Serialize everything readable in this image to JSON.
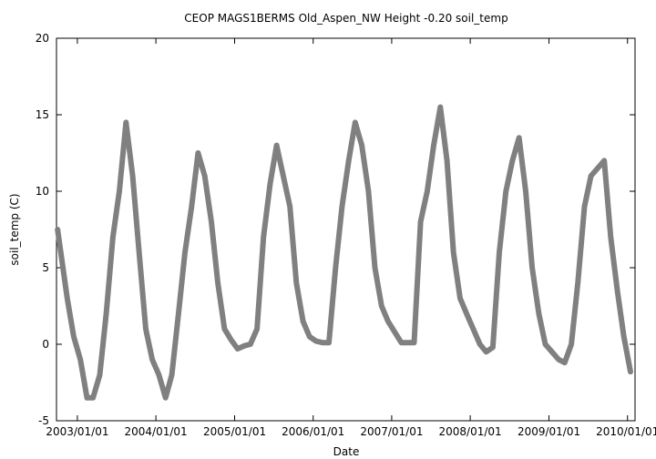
{
  "chart_data": {
    "type": "line",
    "title": "CEOP MAGS1BERMS Old_Aspen_NW Height -0.20 soil_temp",
    "x_label": "Date",
    "y_label": "soil_temp (C)",
    "xlim": [
      "2002-09-26",
      "2010-02-05"
    ],
    "xticks": [
      {
        "value": "2003-01-01",
        "label": "2003/01/01"
      },
      {
        "value": "2004-01-01",
        "label": "2004/01/01"
      },
      {
        "value": "2005-01-01",
        "label": "2005/01/01"
      },
      {
        "value": "2006-01-01",
        "label": "2006/01/01"
      },
      {
        "value": "2007-01-01",
        "label": "2007/01/01"
      },
      {
        "value": "2008-01-01",
        "label": "2008/01/01"
      },
      {
        "value": "2009-01-01",
        "label": "2009/01/01"
      },
      {
        "value": "2010-01-01",
        "label": "2010/01/01"
      }
    ],
    "ylim": [
      -5,
      20
    ],
    "yticks": [
      -5,
      0,
      5,
      10,
      15,
      20
    ],
    "x": [
      "2002-10-01",
      "2002-11-15",
      "2002-12-15",
      "2003-01-15",
      "2003-02-15",
      "2003-03-15",
      "2003-04-15",
      "2003-05-15",
      "2003-06-15",
      "2003-07-15",
      "2003-08-15",
      "2003-09-15",
      "2003-10-15",
      "2003-11-15",
      "2003-12-15",
      "2004-01-15",
      "2004-02-15",
      "2004-03-15",
      "2004-04-15",
      "2004-05-15",
      "2004-06-15",
      "2004-07-15",
      "2004-08-15",
      "2004-09-15",
      "2004-10-15",
      "2004-11-15",
      "2004-12-15",
      "2005-01-15",
      "2005-02-15",
      "2005-03-15",
      "2005-04-15",
      "2005-05-15",
      "2005-06-15",
      "2005-07-15",
      "2005-08-15",
      "2005-09-15",
      "2005-10-15",
      "2005-11-15",
      "2005-12-15",
      "2006-01-15",
      "2006-02-15",
      "2006-03-15",
      "2006-04-15",
      "2006-05-15",
      "2006-06-15",
      "2006-07-15",
      "2006-08-15",
      "2006-09-15",
      "2006-10-15",
      "2006-11-15",
      "2006-12-15",
      "2007-01-15",
      "2007-02-15",
      "2007-03-15",
      "2007-04-15",
      "2007-05-15",
      "2007-06-15",
      "2007-07-15",
      "2007-08-15",
      "2007-09-15",
      "2007-10-15",
      "2007-11-15",
      "2007-12-15",
      "2008-01-15",
      "2008-02-15",
      "2008-03-15",
      "2008-04-15",
      "2008-05-15",
      "2008-06-15",
      "2008-07-15",
      "2008-08-15",
      "2008-09-15",
      "2008-10-15",
      "2008-11-15",
      "2008-12-15",
      "2009-01-15",
      "2009-02-15",
      "2009-03-15",
      "2009-04-15",
      "2009-05-15",
      "2009-06-15",
      "2009-07-15",
      "2009-08-15",
      "2009-09-15",
      "2009-10-15",
      "2009-11-15",
      "2009-12-15",
      "2010-01-15"
    ],
    "series": [
      {
        "name": "soil_temp",
        "color": "#808080",
        "values": [
          7.5,
          3,
          0.5,
          -1,
          -3.5,
          -3.5,
          -2,
          2,
          7,
          10,
          14.5,
          11,
          6,
          1,
          -1,
          -2,
          -3.5,
          -2,
          2,
          6,
          9,
          12.5,
          11,
          8,
          4,
          1,
          0.3,
          -0.3,
          -0.1,
          0,
          1,
          7,
          10.5,
          13,
          11,
          9,
          4,
          1.5,
          0.5,
          0.2,
          0.1,
          0.1,
          5,
          9,
          12,
          14.5,
          13,
          10,
          5,
          2.5,
          1.5,
          0.8,
          0.1,
          0.1,
          0.1,
          8,
          10,
          13,
          15.5,
          12,
          6,
          3,
          2,
          1,
          0,
          -0.5,
          -0.2,
          6,
          10,
          12,
          13.5,
          10,
          5,
          2,
          0,
          -0.5,
          -1,
          -1.2,
          0,
          4,
          9,
          11,
          11.5,
          12,
          7,
          3.5,
          0.5,
          -1.8
        ]
      }
    ]
  }
}
